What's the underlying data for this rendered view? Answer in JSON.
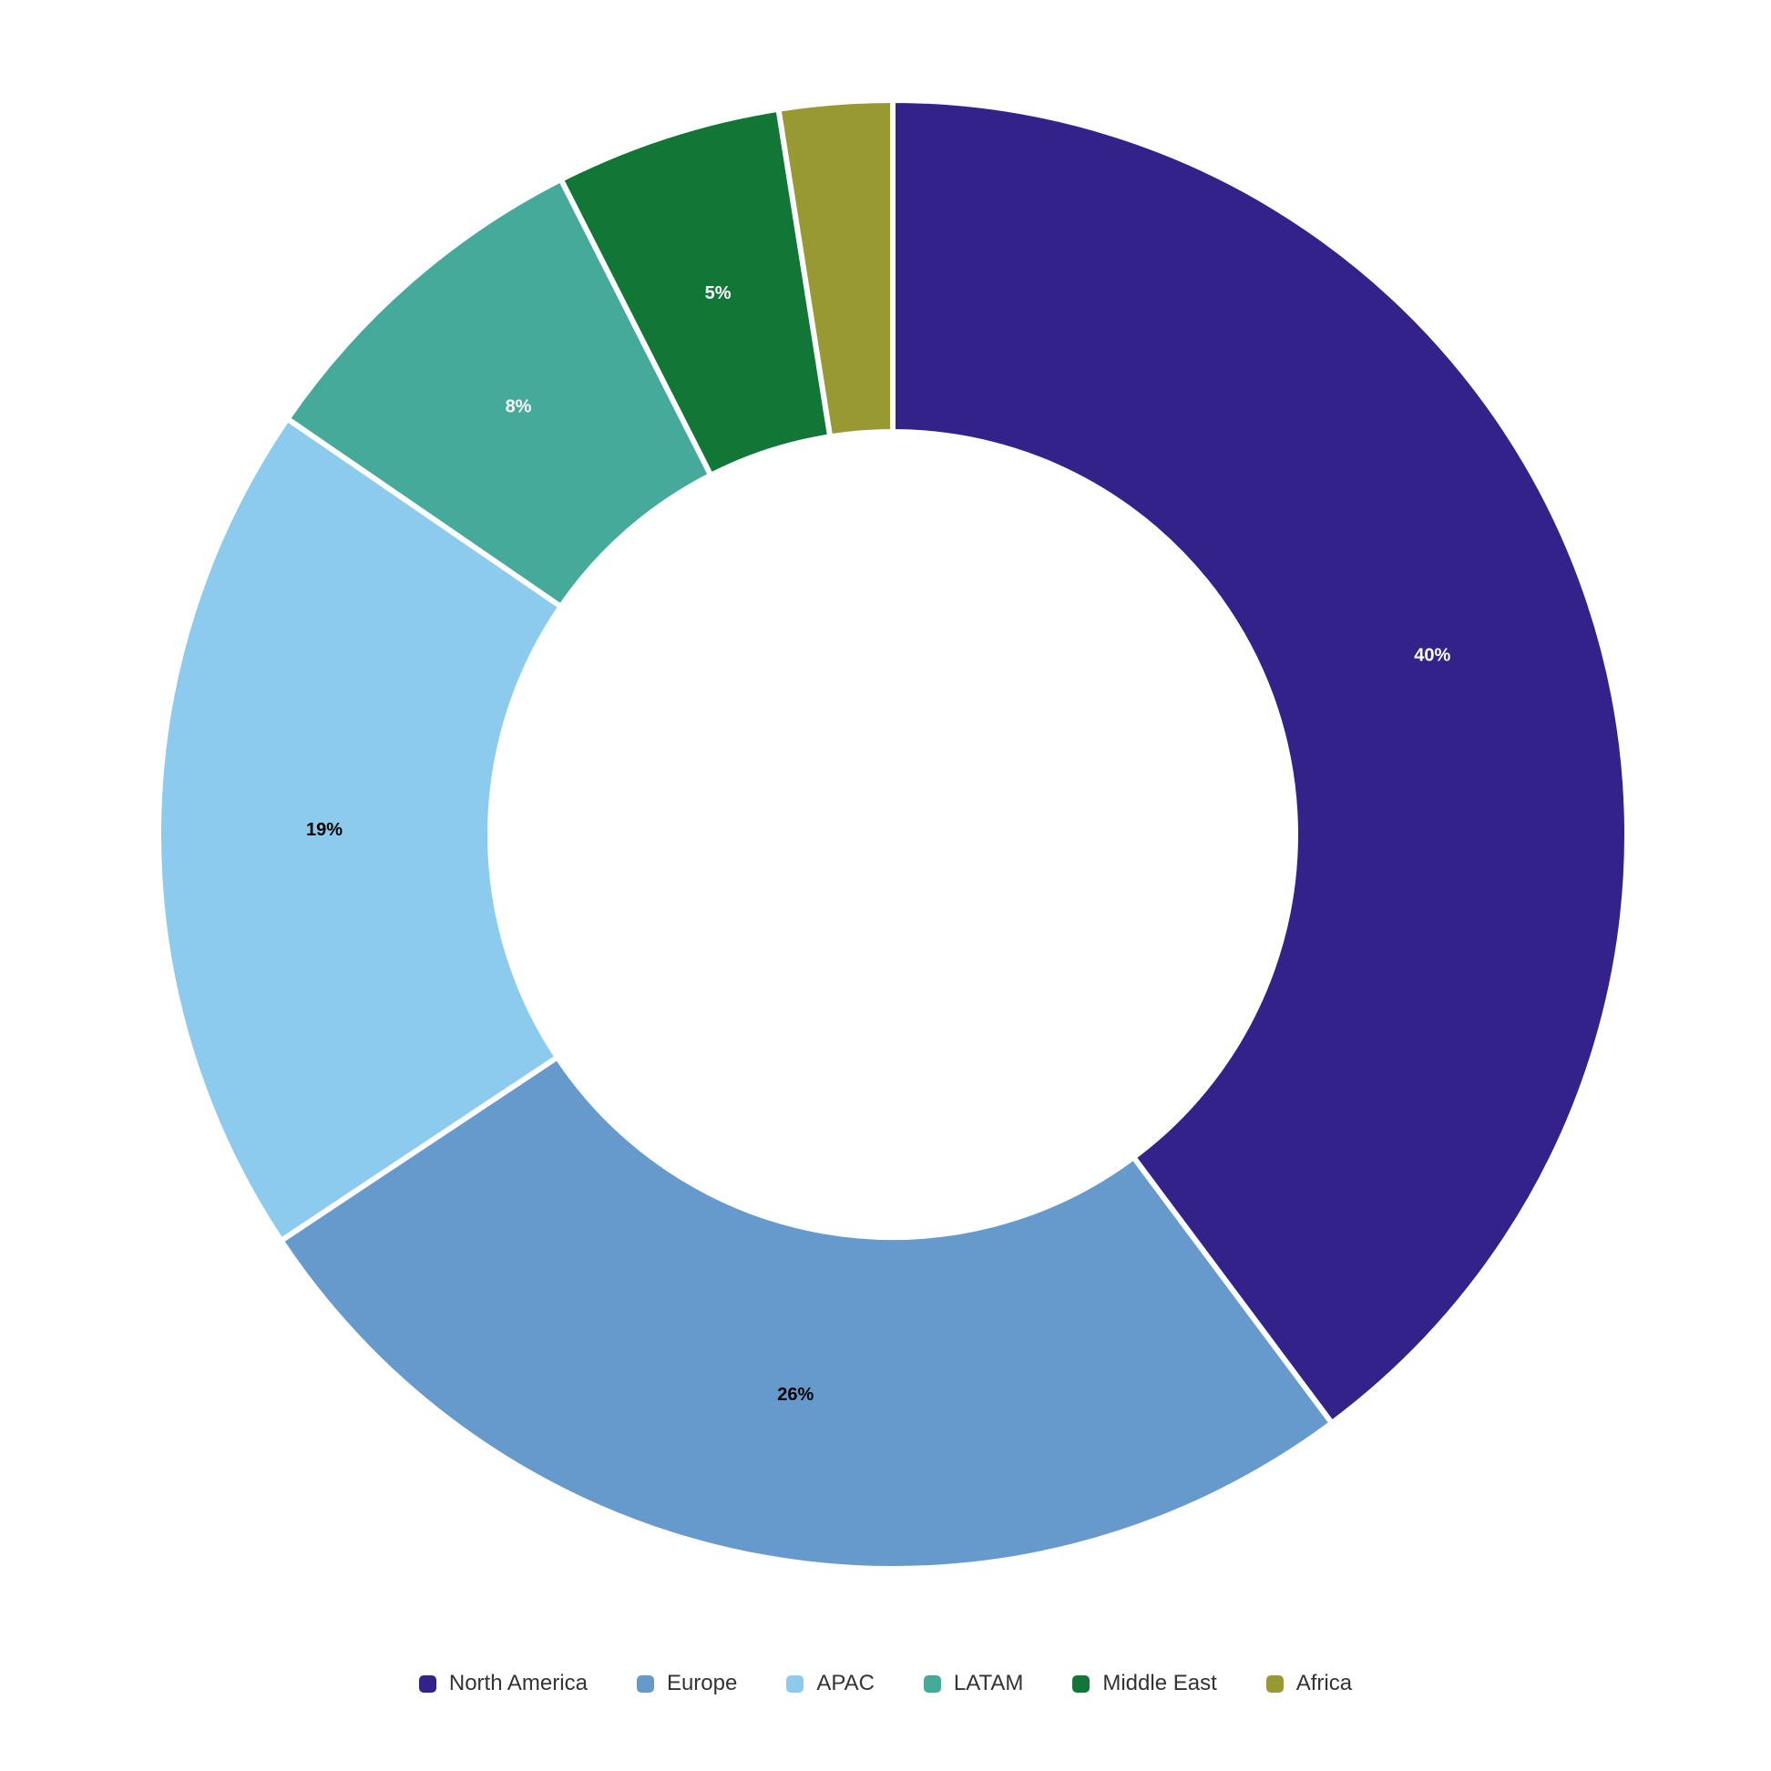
{
  "chart_data": {
    "type": "pie",
    "variant": "donut",
    "title": "",
    "legend_position": "bottom",
    "slices": [
      {
        "name": "North America",
        "value": 40,
        "label": "40%",
        "color": "#33228a",
        "label_color": "#ffffff"
      },
      {
        "name": "Europe",
        "value": 26,
        "label": "26%",
        "color": "#6699cc",
        "label_color": "#000000"
      },
      {
        "name": "APAC",
        "value": 19,
        "label": "19%",
        "color": "#8ccbee",
        "label_color": "#000000"
      },
      {
        "name": "LATAM",
        "value": 8,
        "label": "8%",
        "color": "#45aa99",
        "label_color": "#ffffff"
      },
      {
        "name": "Middle East",
        "value": 5,
        "label": "5%",
        "color": "#127736",
        "label_color": "#ffffff"
      },
      {
        "name": "Africa",
        "value": 2.5,
        "label": "",
        "color": "#999933",
        "label_color": "#ffffff"
      }
    ]
  }
}
